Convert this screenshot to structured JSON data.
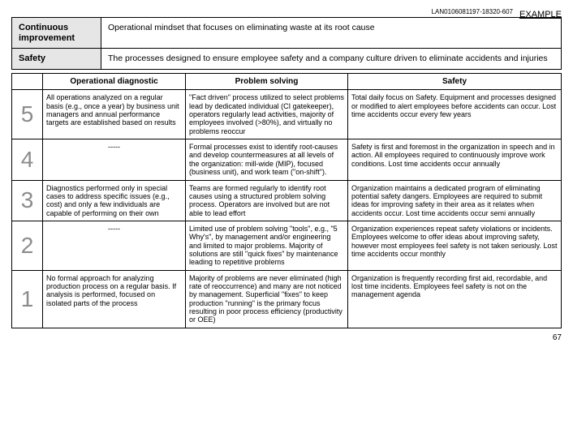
{
  "doc_id": "LAN0106081197-18320-607",
  "example_label": "EXAMPLE",
  "page_number": "67",
  "definitions": [
    {
      "label": "Continuous improvement",
      "body": "Operational mindset that focuses on eliminating waste at its root cause"
    },
    {
      "label": "Safety",
      "body": "The processes designed to ensure employee safety and a company culture driven to eliminate accidents and injuries"
    }
  ],
  "headers": [
    "",
    "Operational diagnostic",
    "Problem solving",
    "Safety"
  ],
  "rows": [
    {
      "n": "5",
      "diag": "All operations analyzed on a regular basis (e.g., once a year) by business unit managers and annual performance targets are established based on results",
      "ps": "\"Fact driven\" process utilized to select problems lead by dedicated individual (CI gatekeeper), operators regularly lead activities, majority of employees involved (>80%), and virtually no problems reoccur",
      "saf": "Total daily focus on Safety. Equipment and processes designed or modified to alert employees before accidents can occur. Lost time accidents occur every few years"
    },
    {
      "n": "4",
      "diag": "-----",
      "ps": "Formal processes exist to identify root-causes and develop countermeasures at all levels of the organization: mill-wide (MIP), focused (business unit), and work team (\"on-shift\").",
      "saf": "Safety is first and foremost in the organization in speech and in action. All employees required to continuously improve work conditions. Lost time accidents occur annually"
    },
    {
      "n": "3",
      "diag": "Diagnostics performed only in special cases to address specific issues (e.g., cost) and only a few individuals are capable of performing on their own",
      "ps": "Teams are formed regularly to identify root causes using a structured problem solving process. Operators are involved but are not able to lead effort",
      "saf": "Organization maintains a dedicated program of eliminating potential safety dangers. Employees are required to submit ideas for improving safety in their area as it relates when accidents occur. Lost time accidents occur semi annually"
    },
    {
      "n": "2",
      "diag": "-----",
      "ps": "Limited use of problem solving \"tools\", e.g., \"5 Why's\", by management and/or engineering and limited to major problems. Majority of solutions are still \"quick fixes\" by maintenance leading to repetitive problems",
      "saf": "Organization experiences repeat safety violations or incidents. Employees welcome to offer ideas about improving safety, however most employees feel safety is not taken seriously. Lost time accidents occur monthly"
    },
    {
      "n": "1",
      "diag": "No formal approach for analyzing production process on a regular basis. If analysis is performed, focused on isolated parts of the process",
      "ps": "Majority of problems are never eliminated (high rate of reoccurrence) and many are not noticed by management. Superficial \"fixes\" to keep production \"running\" is the primary focus resulting in poor process efficiency (productivity or OEE)",
      "saf": "Organization is frequently recording first aid, recordable, and lost time incidents. Employees feel safety is not on the management agenda"
    }
  ]
}
